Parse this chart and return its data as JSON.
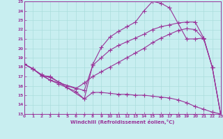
{
  "xlabel": "Windchill (Refroidissement éolien,°C)",
  "bg_color": "#c8eef0",
  "line_color": "#993399",
  "grid_color": "#aadddd",
  "xlim": [
    0,
    23
  ],
  "ylim": [
    13,
    25
  ],
  "xticks": [
    0,
    1,
    2,
    3,
    4,
    5,
    6,
    7,
    8,
    9,
    10,
    11,
    12,
    13,
    14,
    15,
    16,
    17,
    18,
    19,
    20,
    21,
    22,
    23
  ],
  "yticks": [
    13,
    14,
    15,
    16,
    17,
    18,
    19,
    20,
    21,
    22,
    23,
    24,
    25
  ],
  "curves": [
    {
      "x": [
        0,
        1,
        2,
        3,
        7,
        8,
        9,
        10,
        11,
        12,
        13,
        14,
        15,
        16,
        17,
        19,
        20,
        21,
        22,
        23
      ],
      "y": [
        18.3,
        17.8,
        17.1,
        17.0,
        14.6,
        18.3,
        20.1,
        21.2,
        21.8,
        22.3,
        22.8,
        24.0,
        25.0,
        24.8,
        24.3,
        21.0,
        21.0,
        21.1,
        18.0,
        12.9
      ]
    },
    {
      "x": [
        0,
        1,
        2,
        3,
        7,
        8,
        9,
        10,
        11,
        12,
        13,
        14,
        15,
        16,
        17,
        18,
        19,
        20,
        21,
        22,
        23
      ],
      "y": [
        18.3,
        17.8,
        17.1,
        16.6,
        15.5,
        18.2,
        19.0,
        19.8,
        20.3,
        20.7,
        21.1,
        21.5,
        22.0,
        22.3,
        22.5,
        22.7,
        22.8,
        22.8,
        21.1,
        18.0,
        12.9
      ]
    },
    {
      "x": [
        0,
        1,
        2,
        3,
        4,
        5,
        6,
        7,
        8,
        9,
        10,
        11,
        12,
        13,
        14,
        15,
        16,
        17,
        18,
        19,
        20,
        21,
        22,
        23
      ],
      "y": [
        18.3,
        17.8,
        17.1,
        16.9,
        16.4,
        16.0,
        15.7,
        16.3,
        17.0,
        17.5,
        18.0,
        18.5,
        19.0,
        19.5,
        20.0,
        20.6,
        21.1,
        21.5,
        21.9,
        22.1,
        22.0,
        21.0,
        18.0,
        12.9
      ]
    },
    {
      "x": [
        0,
        1,
        2,
        3,
        4,
        5,
        6,
        7,
        8,
        9,
        10,
        11,
        12,
        13,
        14,
        15,
        16,
        17,
        18,
        19,
        20,
        21,
        22,
        23
      ],
      "y": [
        18.3,
        17.8,
        17.2,
        16.6,
        16.2,
        15.8,
        15.4,
        14.6,
        15.3,
        15.3,
        15.2,
        15.1,
        15.1,
        15.0,
        15.0,
        14.9,
        14.8,
        14.7,
        14.5,
        14.2,
        13.8,
        13.5,
        13.2,
        13.0
      ]
    }
  ]
}
